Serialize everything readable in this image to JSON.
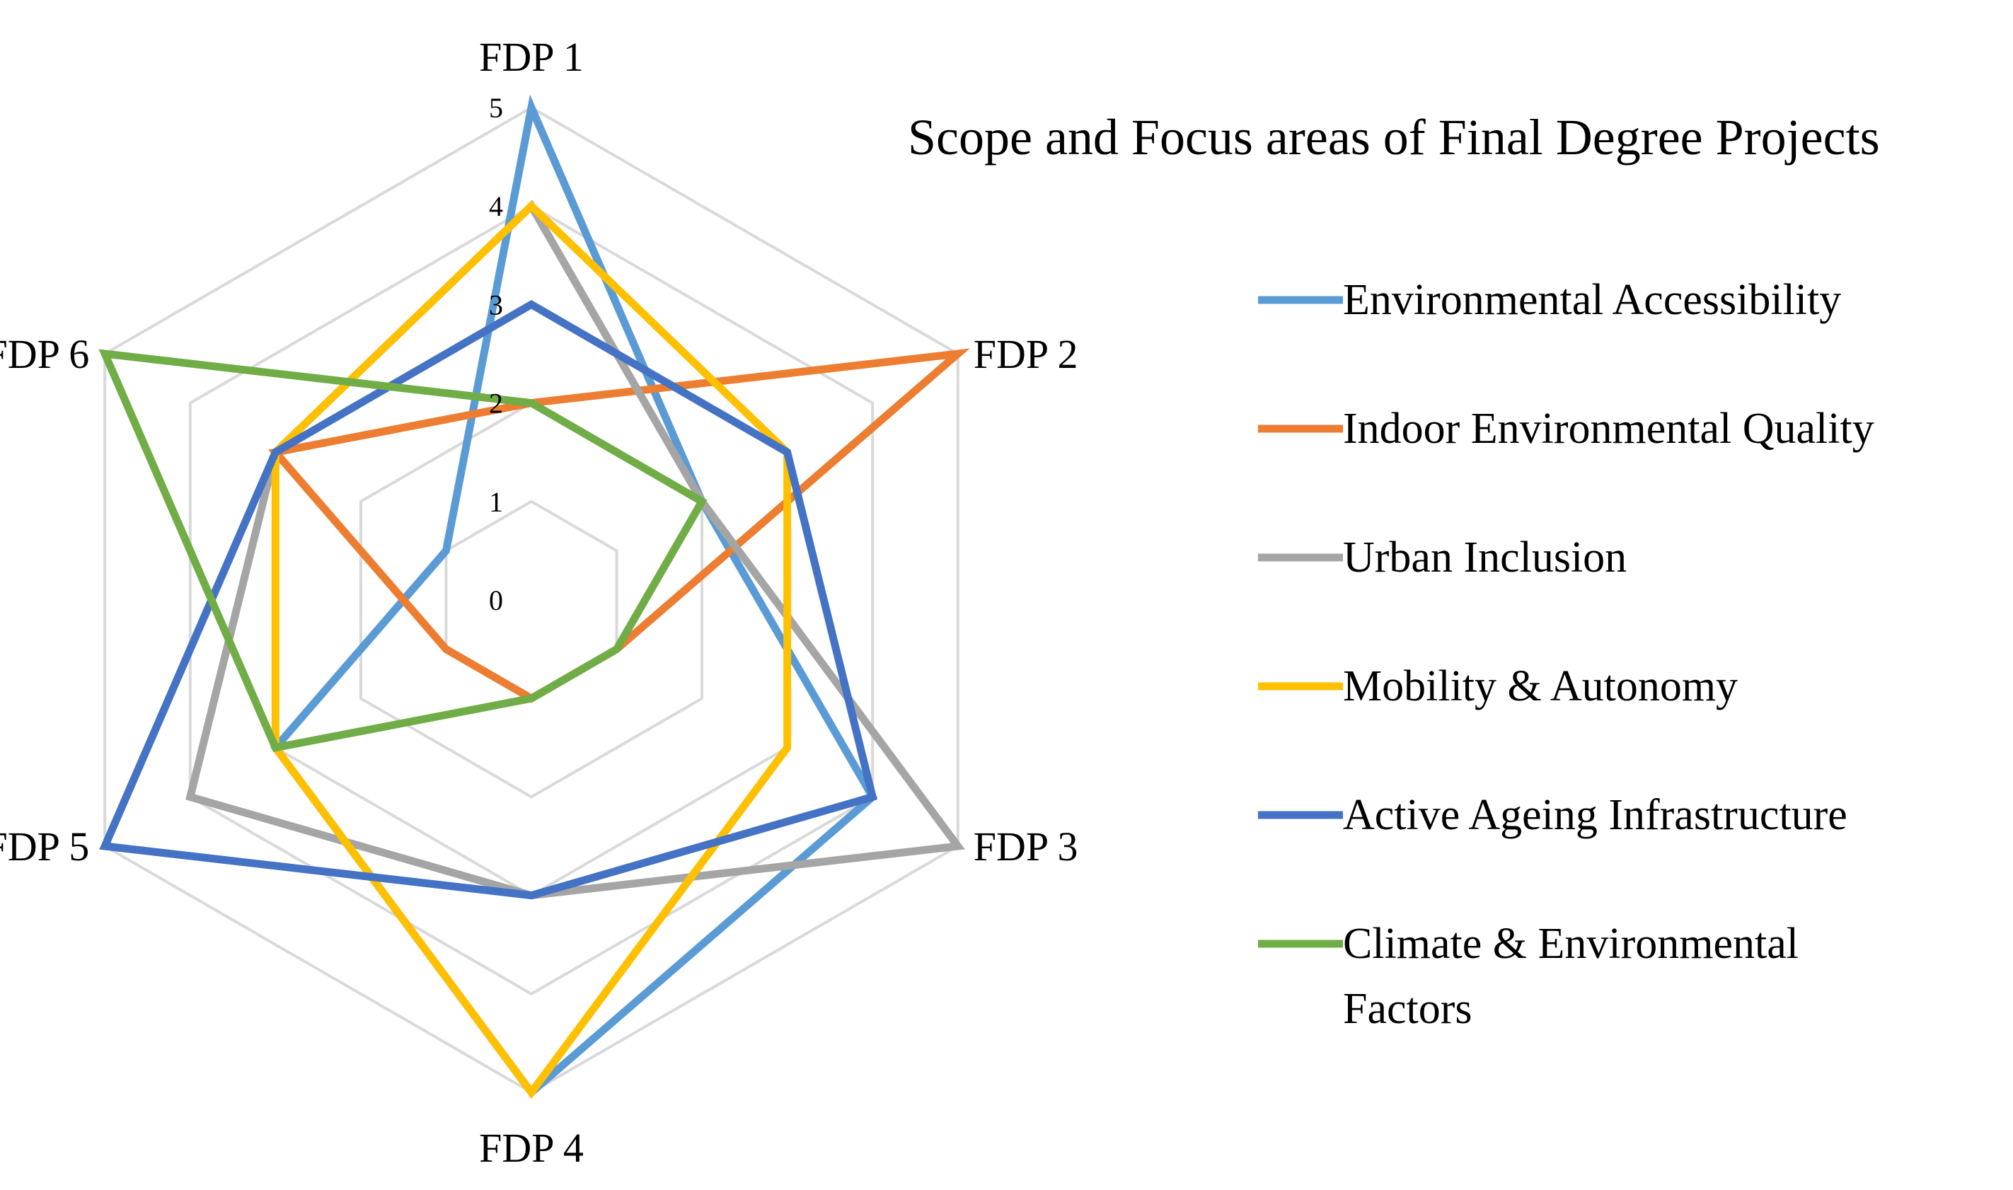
{
  "chart_data": {
    "type": "radar",
    "title": "Scope and Focus areas of Final Degree Projects",
    "categories": [
      "FDP 1",
      "FDP 2",
      "FDP 3",
      "FDP 4",
      "FDP 5",
      "FDP 6"
    ],
    "rlim": [
      0,
      5
    ],
    "ticks": [
      "0",
      "1",
      "2",
      "3",
      "4",
      "5"
    ],
    "grid": true,
    "legend_position": "right",
    "series": [
      {
        "name": "Environmental Accessibility",
        "color": "#5B9BD5",
        "values": [
          5,
          2,
          4,
          5,
          3,
          1
        ]
      },
      {
        "name": "Indoor Environmental Quality",
        "color": "#ED7D31",
        "values": [
          2,
          5,
          1,
          1,
          1,
          3
        ]
      },
      {
        "name": "Urban Inclusion",
        "color": "#A5A5A5",
        "values": [
          4,
          2,
          5,
          3,
          4,
          3
        ]
      },
      {
        "name": "Mobility & Autonomy",
        "color": "#FFC000",
        "values": [
          4,
          3,
          3,
          5,
          3,
          3
        ]
      },
      {
        "name": "Active Ageing Infrastructure",
        "color": "#4472C4",
        "values": [
          3,
          3,
          4,
          3,
          5,
          3
        ]
      },
      {
        "name": "Climate & Environmental Factors",
        "legend_lines": [
          "Climate & Environmental",
          "Factors"
        ],
        "color": "#70AD47",
        "values": [
          2,
          2,
          1,
          1,
          3,
          5
        ]
      }
    ]
  }
}
